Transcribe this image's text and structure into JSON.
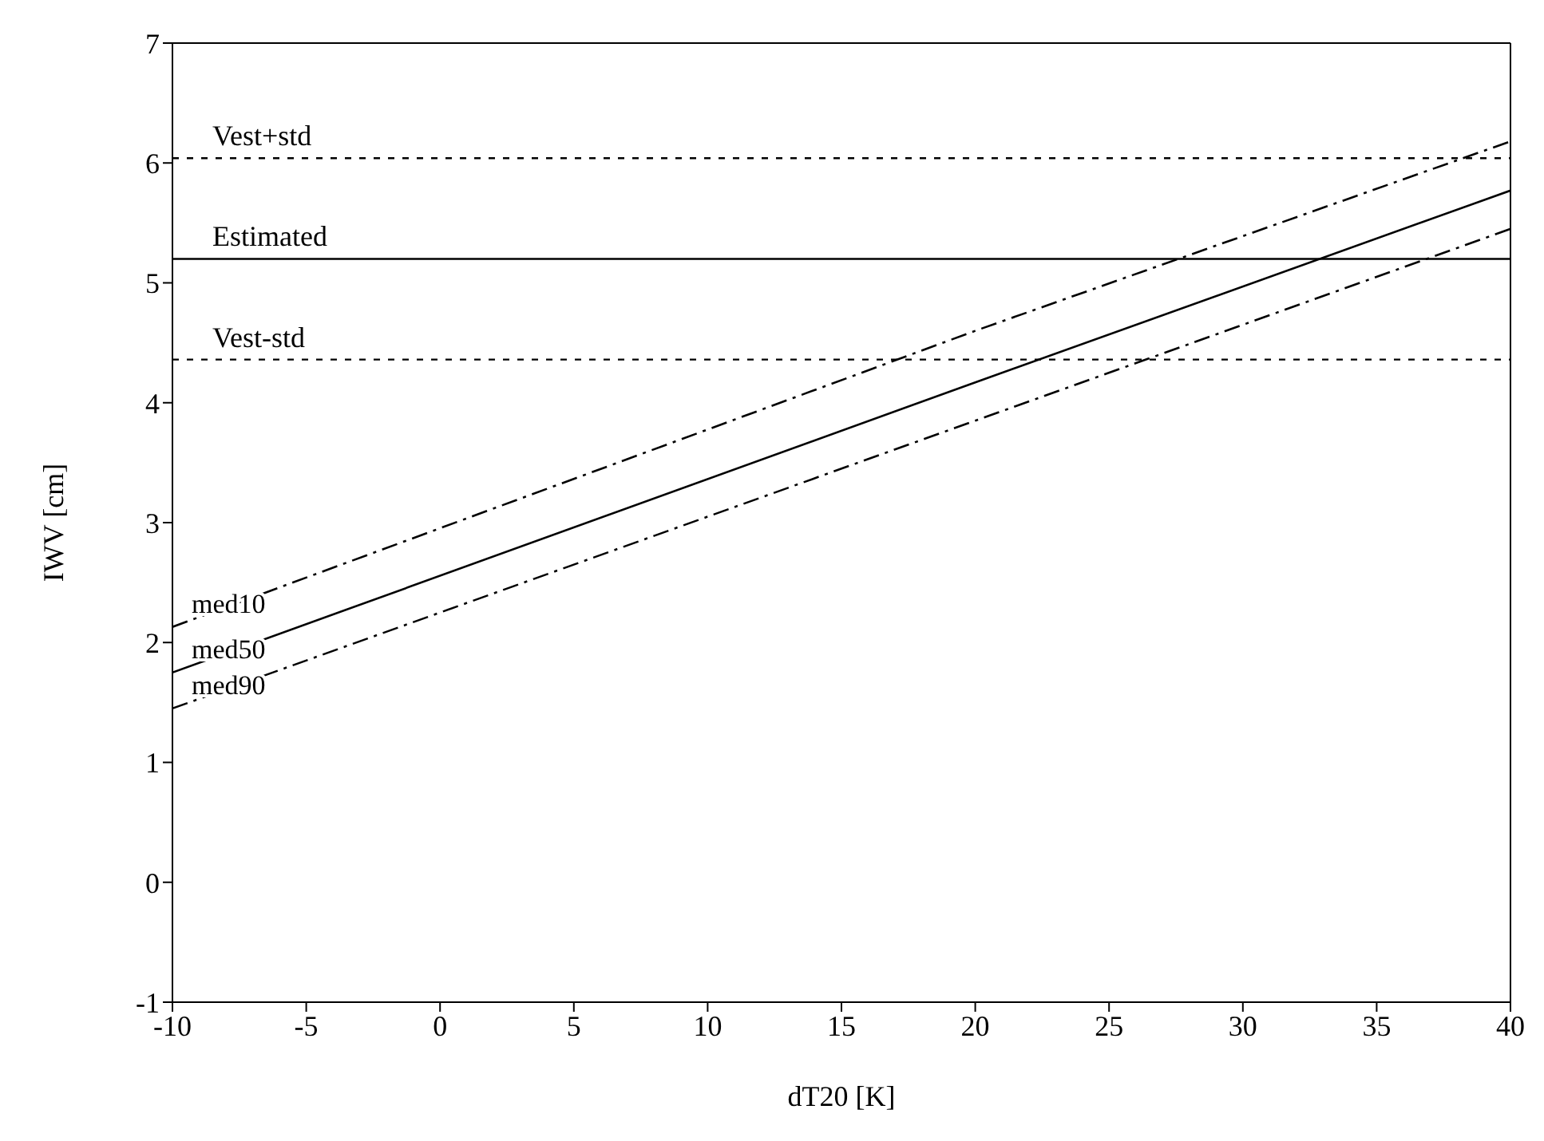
{
  "chart_data": {
    "type": "line",
    "xlabel": "dT20 [K]",
    "ylabel": "IWV [cm]",
    "x": [
      -10,
      20,
      40
    ],
    "series": [
      {
        "name": "med10",
        "color": "#000000",
        "values": [
          2.13,
          4.6,
          6.18
        ],
        "line_style": "dashed"
      },
      {
        "name": "med50",
        "color": "#000000",
        "values": [
          1.75,
          4.17,
          5.77
        ],
        "line_style": "solid"
      },
      {
        "name": "med90",
        "color": "#000000",
        "values": [
          1.45,
          3.85,
          5.45
        ],
        "line_style": "dashed"
      }
    ],
    "ref_lines": [
      {
        "axis": "y",
        "value": 6.04,
        "label": "Vest+std",
        "line_style": "dotted",
        "color": "#000000"
      },
      {
        "axis": "y",
        "value": 5.2,
        "label": "Estimated",
        "line_style": "solid",
        "color": "#000000"
      },
      {
        "axis": "y",
        "value": 4.36,
        "label": "Vest-std",
        "line_style": "dotted",
        "color": "#000000"
      }
    ],
    "xlim": [
      -10,
      40
    ],
    "xticks": [
      -10,
      -5,
      0,
      5,
      10,
      15,
      20,
      25,
      30,
      35,
      40
    ],
    "ylim": [
      -1,
      7
    ],
    "yticks": [
      -1,
      0,
      1,
      2,
      3,
      4,
      5,
      6,
      7
    ],
    "grid": false,
    "marker": "none"
  }
}
